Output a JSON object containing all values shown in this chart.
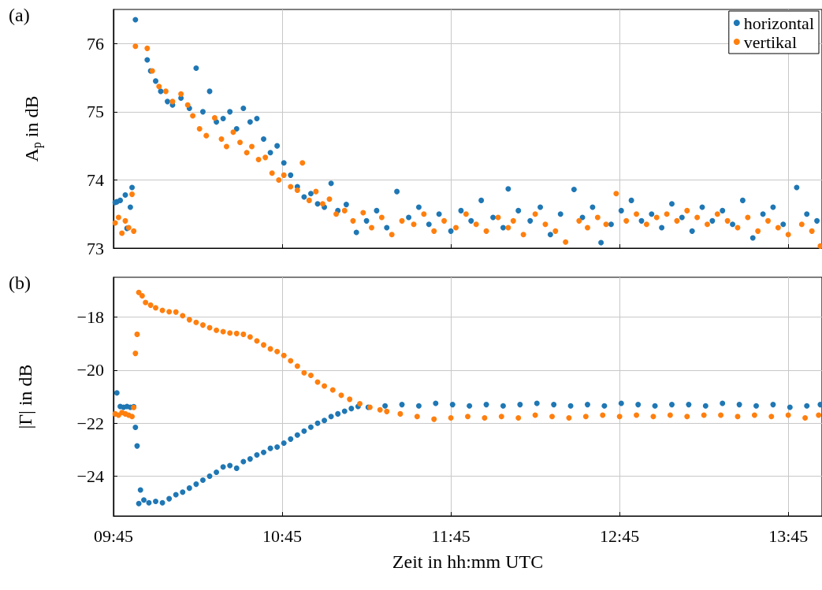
{
  "chart_data": [
    {
      "type": "scatter",
      "title": "(a)",
      "ylabel": "A$_{p}$ in dB",
      "xlim": [
        9.75,
        13.95
      ],
      "ylim": [
        73,
        76.5
      ],
      "yticks": [
        73,
        74,
        75,
        76
      ],
      "tick_labels": "y",
      "grid": true,
      "legend": "top right",
      "marker": "circle",
      "series": [
        {
          "name": "horizontal",
          "color": "#1f77b4",
          "x": [
            9.76,
            9.77,
            9.79,
            9.82,
            9.83,
            9.85,
            9.86,
            9.88,
            9.95,
            9.97,
            10.0,
            10.03,
            10.07,
            10.1,
            10.15,
            10.2,
            10.24,
            10.28,
            10.32,
            10.36,
            10.4,
            10.44,
            10.48,
            10.52,
            10.56,
            10.6,
            10.64,
            10.68,
            10.72,
            10.76,
            10.8,
            10.84,
            10.88,
            10.92,
            10.96,
            11.0,
            11.04,
            11.08,
            11.13,
            11.19,
            11.25,
            11.31,
            11.37,
            11.43,
            11.5,
            11.56,
            11.62,
            11.68,
            11.75,
            11.81,
            11.87,
            11.93,
            12.0,
            12.06,
            12.09,
            12.15,
            12.22,
            12.28,
            12.34,
            12.4,
            12.48,
            12.53,
            12.59,
            12.64,
            12.7,
            12.76,
            12.82,
            12.88,
            12.94,
            13.0,
            13.06,
            13.12,
            13.18,
            13.24,
            13.3,
            13.36,
            13.42,
            13.48,
            13.54,
            13.6,
            13.66,
            13.72,
            13.8,
            13.86,
            13.92
          ],
          "values": [
            73.67,
            73.68,
            73.7,
            73.78,
            73.29,
            73.6,
            73.89,
            76.35,
            75.76,
            75.6,
            75.45,
            75.3,
            75.15,
            75.1,
            75.2,
            75.05,
            75.64,
            75.0,
            75.3,
            74.85,
            74.9,
            75.0,
            74.75,
            75.05,
            74.85,
            74.9,
            74.6,
            74.4,
            74.5,
            74.25,
            74.07,
            73.9,
            73.75,
            73.8,
            73.65,
            73.6,
            73.95,
            73.55,
            73.64,
            73.23,
            73.4,
            73.55,
            73.3,
            73.83,
            73.45,
            73.6,
            73.35,
            73.5,
            73.25,
            73.55,
            73.4,
            73.7,
            73.45,
            73.3,
            73.87,
            73.55,
            73.4,
            73.6,
            73.2,
            73.5,
            73.86,
            73.45,
            73.6,
            73.08,
            73.35,
            73.55,
            73.7,
            73.4,
            73.5,
            73.3,
            73.65,
            73.45,
            73.25,
            73.6,
            73.4,
            73.55,
            73.35,
            73.7,
            73.15,
            73.5,
            73.6,
            73.35,
            73.89,
            73.5,
            73.4
          ]
        },
        {
          "name": "vertikal",
          "color": "#ff7f0e",
          "x": [
            9.76,
            9.78,
            9.8,
            9.82,
            9.84,
            9.86,
            9.87,
            9.88,
            9.95,
            9.98,
            10.02,
            10.06,
            10.1,
            10.15,
            10.19,
            10.22,
            10.26,
            10.3,
            10.35,
            10.39,
            10.42,
            10.46,
            10.5,
            10.54,
            10.57,
            10.61,
            10.65,
            10.69,
            10.73,
            10.76,
            10.8,
            10.84,
            10.87,
            10.91,
            10.95,
            10.99,
            11.03,
            11.07,
            11.12,
            11.17,
            11.23,
            11.28,
            11.34,
            11.4,
            11.46,
            11.53,
            11.59,
            11.65,
            11.71,
            11.78,
            11.84,
            11.9,
            11.96,
            12.03,
            12.09,
            12.12,
            12.18,
            12.25,
            12.31,
            12.37,
            12.43,
            12.51,
            12.56,
            12.62,
            12.67,
            12.73,
            12.79,
            12.85,
            12.91,
            12.97,
            13.03,
            13.09,
            13.15,
            13.21,
            13.27,
            13.33,
            13.39,
            13.45,
            13.51,
            13.57,
            13.63,
            13.69,
            13.75,
            13.83,
            13.89,
            13.94
          ],
          "values": [
            73.37,
            73.45,
            73.22,
            73.4,
            73.3,
            73.79,
            73.25,
            75.96,
            75.93,
            75.6,
            75.37,
            75.3,
            75.15,
            75.26,
            75.1,
            74.94,
            74.75,
            74.65,
            74.91,
            74.6,
            74.49,
            74.7,
            74.55,
            74.4,
            74.49,
            74.3,
            74.33,
            74.1,
            74.0,
            74.07,
            73.9,
            73.85,
            74.25,
            73.7,
            73.83,
            73.65,
            73.72,
            73.5,
            73.55,
            73.4,
            73.52,
            73.3,
            73.45,
            73.2,
            73.4,
            73.35,
            73.5,
            73.25,
            73.4,
            73.3,
            73.5,
            73.35,
            73.25,
            73.45,
            73.3,
            73.4,
            73.2,
            73.5,
            73.35,
            73.25,
            73.09,
            73.4,
            73.3,
            73.45,
            73.35,
            73.8,
            73.4,
            73.5,
            73.35,
            73.45,
            73.5,
            73.4,
            73.55,
            73.45,
            73.35,
            73.5,
            73.4,
            73.3,
            73.45,
            73.25,
            73.4,
            73.3,
            73.2,
            73.35,
            73.25,
            73.03
          ]
        }
      ]
    },
    {
      "type": "scatter",
      "title": "(b)",
      "ylabel": "|Γ| in dB",
      "xlabel": "Zeit in hh:mm UTC",
      "xlim": [
        9.75,
        13.95
      ],
      "xticks": [
        {
          "value": 9.75,
          "label": "09:45"
        },
        {
          "value": 10.75,
          "label": "10:45"
        },
        {
          "value": 11.75,
          "label": "11:45"
        },
        {
          "value": 12.75,
          "label": "12:45"
        },
        {
          "value": 13.75,
          "label": "13:45"
        }
      ],
      "ylim": [
        -25.5,
        -16.5
      ],
      "yticks": [
        {
          "value": -24,
          "label": "−24"
        },
        {
          "value": -22,
          "label": "−22"
        },
        {
          "value": -20,
          "label": "−20"
        },
        {
          "value": -18,
          "label": "−18"
        }
      ],
      "grid": true,
      "marker": "circle",
      "series": [
        {
          "color": "#1f77b4",
          "x": [
            9.77,
            9.79,
            9.81,
            9.83,
            9.85,
            9.87,
            9.88,
            9.89,
            9.9,
            9.91,
            9.93,
            9.96,
            10.0,
            10.04,
            10.08,
            10.12,
            10.16,
            10.2,
            10.24,
            10.28,
            10.32,
            10.36,
            10.4,
            10.44,
            10.48,
            10.52,
            10.56,
            10.6,
            10.64,
            10.68,
            10.72,
            10.76,
            10.8,
            10.84,
            10.88,
            10.92,
            10.96,
            11.0,
            11.04,
            11.08,
            11.12,
            11.16,
            11.2,
            11.26,
            11.36,
            11.46,
            11.56,
            11.66,
            11.76,
            11.86,
            11.96,
            12.06,
            12.16,
            12.26,
            12.36,
            12.46,
            12.56,
            12.66,
            12.76,
            12.86,
            12.96,
            13.06,
            13.16,
            13.26,
            13.36,
            13.46,
            13.56,
            13.66,
            13.76,
            13.86,
            13.94
          ],
          "values": [
            -20.86,
            -21.37,
            -21.4,
            -21.37,
            -21.4,
            -21.38,
            -22.16,
            -22.86,
            -25.03,
            -24.52,
            -24.9,
            -25.0,
            -24.95,
            -25.0,
            -24.85,
            -24.7,
            -24.6,
            -24.45,
            -24.3,
            -24.15,
            -24.0,
            -23.85,
            -23.65,
            -23.6,
            -23.7,
            -23.45,
            -23.35,
            -23.2,
            -23.1,
            -22.95,
            -22.9,
            -22.75,
            -22.6,
            -22.45,
            -22.3,
            -22.15,
            -22.0,
            -21.9,
            -21.75,
            -21.65,
            -21.55,
            -21.45,
            -21.37,
            -21.4,
            -21.35,
            -21.3,
            -21.35,
            -21.25,
            -21.3,
            -21.35,
            -21.3,
            -21.35,
            -21.3,
            -21.25,
            -21.3,
            -21.35,
            -21.3,
            -21.35,
            -21.25,
            -21.3,
            -21.35,
            -21.3,
            -21.3,
            -21.35,
            -21.25,
            -21.3,
            -21.35,
            -21.3,
            -21.4,
            -21.35,
            -21.3
          ]
        },
        {
          "color": "#ff7f0e",
          "x": [
            9.76,
            9.78,
            9.8,
            9.82,
            9.84,
            9.86,
            9.87,
            9.88,
            9.89,
            9.9,
            9.92,
            9.94,
            9.97,
            10.0,
            10.04,
            10.08,
            10.12,
            10.16,
            10.2,
            10.24,
            10.28,
            10.32,
            10.36,
            10.4,
            10.44,
            10.48,
            10.52,
            10.56,
            10.6,
            10.64,
            10.68,
            10.72,
            10.76,
            10.8,
            10.84,
            10.88,
            10.92,
            10.96,
            11.0,
            11.05,
            11.1,
            11.15,
            11.21,
            11.27,
            11.33,
            11.37,
            11.45,
            11.55,
            11.65,
            11.75,
            11.85,
            11.95,
            12.05,
            12.15,
            12.25,
            12.35,
            12.45,
            12.55,
            12.65,
            12.75,
            12.85,
            12.95,
            13.05,
            13.15,
            13.25,
            13.35,
            13.45,
            13.55,
            13.65,
            13.75,
            13.85,
            13.93
          ],
          "values": [
            -21.65,
            -21.7,
            -21.6,
            -21.65,
            -21.7,
            -21.75,
            -21.41,
            -19.37,
            -18.65,
            -17.07,
            -17.2,
            -17.45,
            -17.55,
            -17.65,
            -17.75,
            -17.8,
            -17.81,
            -17.95,
            -18.1,
            -18.2,
            -18.3,
            -18.4,
            -18.5,
            -18.55,
            -18.6,
            -18.62,
            -18.65,
            -18.75,
            -18.9,
            -19.05,
            -19.2,
            -19.3,
            -19.45,
            -19.65,
            -19.85,
            -20.1,
            -20.2,
            -20.45,
            -20.6,
            -20.75,
            -20.95,
            -21.1,
            -21.27,
            -21.4,
            -21.5,
            -21.56,
            -21.65,
            -21.75,
            -21.85,
            -21.8,
            -21.75,
            -21.8,
            -21.75,
            -21.8,
            -21.7,
            -21.75,
            -21.8,
            -21.75,
            -21.7,
            -21.75,
            -21.7,
            -21.75,
            -21.7,
            -21.75,
            -21.7,
            -21.7,
            -21.75,
            -21.7,
            -21.75,
            -21.7,
            -21.8,
            -21.7
          ]
        }
      ]
    }
  ]
}
